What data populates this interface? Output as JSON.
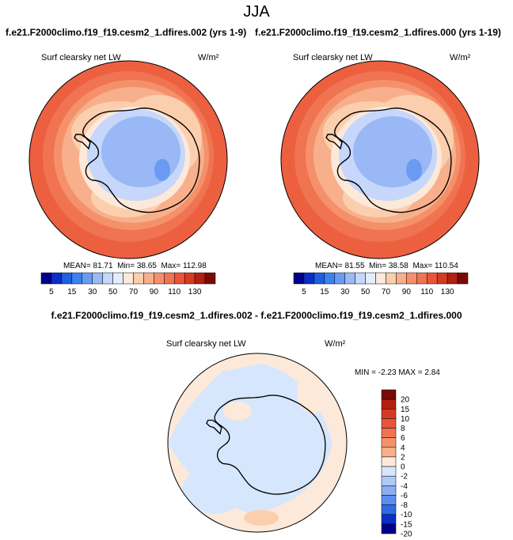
{
  "main_title": "JJA",
  "panels": {
    "left": {
      "title": "f.e21.F2000climo.f19_f19.cesm2_1.dfires.002 (yrs 1-9)",
      "variable": "Surf clearsky net LW",
      "units": "W/m²",
      "mean_label": "MEAN=",
      "mean": "81.71",
      "min_label": "Min=",
      "min": "38.65",
      "max_label": "Max=",
      "max": "112.98"
    },
    "right": {
      "title": "f.e21.F2000climo.f19_f19.cesm2_1.dfires.000 (yrs 1-19)",
      "variable": "Surf clearsky net LW",
      "units": "W/m²",
      "mean_label": "MEAN=",
      "mean": "81.55",
      "min_label": "Min=",
      "min": "38.58",
      "max_label": "Max=",
      "max": "110.54"
    },
    "diff": {
      "title": "f.e21.F2000climo.f19_f19.cesm2_1.dfires.002 - f.e21.F2000climo.f19_f19.cesm2_1.dfires.000",
      "variable": "Surf clearsky net LW",
      "units": "W/m²",
      "min_label": "MIN =",
      "min": "-2.23",
      "max_label": "MAX =",
      "max": "2.84"
    }
  },
  "chart_data": [
    {
      "type": "heatmap",
      "projection": "polar stereographic (south pole)",
      "variable": "Surf clearsky net LW",
      "units": "W/m2",
      "mean": 81.71,
      "min": 38.65,
      "max": 112.98,
      "colorbar_ticks": [
        "5",
        "15",
        "30",
        "50",
        "70",
        "90",
        "110",
        "130"
      ],
      "colors": [
        "#00008a",
        "#0a2ec8",
        "#1f5fe0",
        "#3b82f0",
        "#6a9bf2",
        "#9ab8f5",
        "#c6d7fb",
        "#e4edfd",
        "#fde9d9",
        "#fbcfae",
        "#f7b08b",
        "#f4916b",
        "#f07352",
        "#e9553a",
        "#d63a23",
        "#b31f10",
        "#7a0a05"
      ]
    },
    {
      "type": "heatmap",
      "projection": "polar stereographic (south pole)",
      "variable": "Surf clearsky net LW",
      "units": "W/m2",
      "mean": 81.55,
      "min": 38.58,
      "max": 110.54,
      "colorbar_ticks": [
        "5",
        "15",
        "30",
        "50",
        "70",
        "90",
        "110",
        "130"
      ],
      "colors": [
        "#00008a",
        "#0a2ec8",
        "#1f5fe0",
        "#3b82f0",
        "#6a9bf2",
        "#9ab8f5",
        "#c6d7fb",
        "#e4edfd",
        "#fde9d9",
        "#fbcfae",
        "#f7b08b",
        "#f4916b",
        "#f07352",
        "#e9553a",
        "#d63a23",
        "#b31f10",
        "#7a0a05"
      ]
    },
    {
      "type": "heatmap",
      "projection": "polar stereographic (south pole)",
      "variable": "Surf clearsky net LW",
      "units": "W/m2",
      "min": -2.23,
      "max": 2.84,
      "colorbar_ticks": [
        "20",
        "15",
        "10",
        "8",
        "6",
        "4",
        "2",
        "0",
        "-2",
        "-4",
        "-6",
        "-8",
        "-10",
        "-15",
        "-20"
      ],
      "colors": [
        "#7a0a05",
        "#b31f10",
        "#d63a23",
        "#e9553a",
        "#f07352",
        "#f4916b",
        "#f7b08b",
        "#fde9d9",
        "#d6e6fc",
        "#b0c9f7",
        "#8aaef4",
        "#5b8ef0",
        "#2f6ae6",
        "#0a2ec8",
        "#00008a"
      ]
    }
  ]
}
